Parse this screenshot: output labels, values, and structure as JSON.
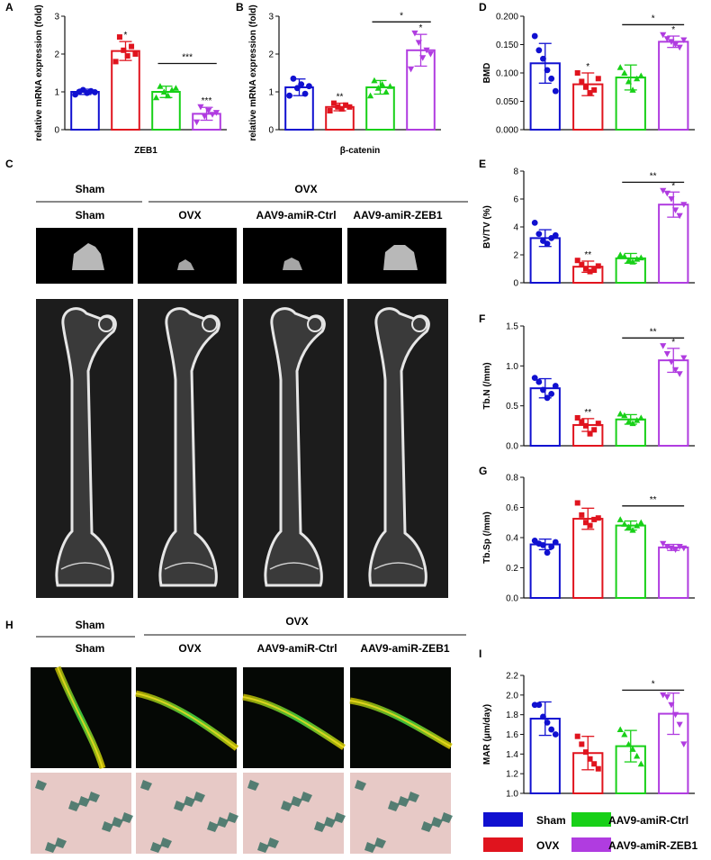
{
  "panels": {
    "A": "A",
    "B": "B",
    "C": "C",
    "D": "D",
    "E": "E",
    "F": "F",
    "G": "G",
    "H": "H",
    "I": "I"
  },
  "groups": [
    "Sham",
    "OVX",
    "AAV9-amiR-Ctrl",
    "AAV9-amiR-ZEB1"
  ],
  "colors": {
    "Sham": "#1010d0",
    "OVX": "#e0141e",
    "AAV9-amiR-Ctrl": "#18d018",
    "AAV9-amiR-ZEB1": "#b03ce0"
  },
  "section_c": {
    "sham_header": "Sham",
    "ovx_header": "OVX",
    "cols": [
      "Sham",
      "OVX",
      "AAV9-amiR-Ctrl",
      "AAV9-amiR-ZEB1"
    ]
  },
  "section_h": {
    "sham_header": "Sham",
    "ovx_header": "OVX",
    "cols": [
      "Sham",
      "OVX",
      "AAV9-amiR-Ctrl",
      "AAV9-amiR-ZEB1"
    ]
  },
  "legend": [
    "Sham",
    "OVX",
    "AAV9-amiR-Ctrl",
    "AAV9-amiR-ZEB1"
  ],
  "chart_data": [
    {
      "id": "A",
      "type": "bar",
      "categories": [
        "Sham",
        "OVX",
        "AAV9-amiR-Ctrl",
        "AAV9-amiR-ZEB1"
      ],
      "values": [
        1.0,
        2.08,
        1.0,
        0.42
      ],
      "errors": [
        0.07,
        0.25,
        0.15,
        0.17
      ],
      "points": [
        [
          0.93,
          1.0,
          1.05,
          0.97,
          1.02,
          0.99
        ],
        [
          1.8,
          2.45,
          2.1,
          1.95,
          2.2,
          2.0
        ],
        [
          0.85,
          1.15,
          1.0,
          0.9,
          1.05,
          1.1
        ],
        [
          0.2,
          0.6,
          0.35,
          0.5,
          0.4,
          0.45
        ]
      ],
      "stars": [
        "",
        "*",
        "",
        "***"
      ],
      "brackets": [
        {
          "from": 2,
          "to": 3,
          "label": "***"
        }
      ],
      "ylabel": "relative mRNA expression (fold)",
      "xlabel": "ZEB1",
      "ylim": [
        0,
        3
      ],
      "yticks": [
        "0",
        "1",
        "2",
        "3"
      ]
    },
    {
      "id": "B",
      "type": "bar",
      "categories": [
        "Sham",
        "OVX",
        "AAV9-amiR-Ctrl",
        "AAV9-amiR-ZEB1"
      ],
      "values": [
        1.12,
        0.6,
        1.12,
        2.1
      ],
      "errors": [
        0.22,
        0.1,
        0.18,
        0.42
      ],
      "points": [
        [
          0.9,
          1.35,
          1.1,
          1.2,
          0.95,
          1.15
        ],
        [
          0.5,
          0.7,
          0.6,
          0.55,
          0.65,
          0.6
        ],
        [
          0.9,
          1.3,
          1.1,
          1.2,
          1.0,
          1.15
        ],
        [
          1.6,
          2.55,
          2.3,
          1.9,
          2.1,
          2.0
        ]
      ],
      "stars": [
        "",
        "**",
        "",
        "*"
      ],
      "brackets": [
        {
          "from": 2,
          "to": 3,
          "label": "*"
        }
      ],
      "ylabel": "relative mRNA expression (fold)",
      "xlabel": "β-catenin",
      "ylim": [
        0,
        3
      ],
      "yticks": [
        "0",
        "1",
        "2",
        "3"
      ]
    },
    {
      "id": "D",
      "type": "bar",
      "categories": [
        "Sham",
        "OVX",
        "AAV9-amiR-Ctrl",
        "AAV9-amiR-ZEB1"
      ],
      "values": [
        0.117,
        0.08,
        0.092,
        0.155
      ],
      "errors": [
        0.035,
        0.02,
        0.022,
        0.01
      ],
      "points": [
        [
          0.165,
          0.14,
          0.125,
          0.105,
          0.09,
          0.068
        ],
        [
          0.1,
          0.085,
          0.075,
          0.065,
          0.07,
          0.09
        ],
        [
          0.11,
          0.1,
          0.085,
          0.07,
          0.09,
          0.095
        ],
        [
          0.167,
          0.16,
          0.155,
          0.15,
          0.145,
          0.158
        ]
      ],
      "stars": [
        "",
        "*",
        "",
        "*"
      ],
      "brackets": [
        {
          "from": 2,
          "to": 3,
          "label": "*"
        }
      ],
      "ylabel": "BMD",
      "xlabel": "",
      "ylim": [
        0,
        0.2
      ],
      "yticks": [
        "0.000",
        "0.050",
        "0.100",
        "0.150",
        "0.200"
      ]
    },
    {
      "id": "E",
      "type": "bar",
      "categories": [
        "Sham",
        "OVX",
        "AAV9-amiR-Ctrl",
        "AAV9-amiR-ZEB1"
      ],
      "values": [
        3.2,
        1.15,
        1.75,
        5.6
      ],
      "errors": [
        0.6,
        0.4,
        0.35,
        0.9
      ],
      "points": [
        [
          4.3,
          3.5,
          3.0,
          2.8,
          3.2,
          3.4
        ],
        [
          1.6,
          1.3,
          1.0,
          0.8,
          0.9,
          1.2
        ],
        [
          2.0,
          1.9,
          1.6,
          1.5,
          1.7,
          1.8
        ],
        [
          6.6,
          6.4,
          6.0,
          5.2,
          4.8,
          5.6
        ]
      ],
      "stars": [
        "",
        "**",
        "",
        "*"
      ],
      "brackets": [
        {
          "from": 2,
          "to": 3,
          "label": "**"
        }
      ],
      "ylabel": "BV/TV (%)",
      "xlabel": "",
      "ylim": [
        0,
        8
      ],
      "yticks": [
        "0",
        "2",
        "4",
        "6",
        "8"
      ]
    },
    {
      "id": "F",
      "type": "bar",
      "categories": [
        "Sham",
        "OVX",
        "AAV9-amiR-Ctrl",
        "AAV9-amiR-ZEB1"
      ],
      "values": [
        0.72,
        0.26,
        0.33,
        1.07
      ],
      "errors": [
        0.12,
        0.08,
        0.06,
        0.15
      ],
      "points": [
        [
          0.85,
          0.8,
          0.7,
          0.6,
          0.65,
          0.75
        ],
        [
          0.35,
          0.3,
          0.25,
          0.15,
          0.2,
          0.28
        ],
        [
          0.4,
          0.38,
          0.3,
          0.28,
          0.32,
          0.35
        ],
        [
          1.25,
          1.15,
          1.05,
          0.95,
          0.9,
          1.1
        ]
      ],
      "stars": [
        "",
        "**",
        "",
        "*"
      ],
      "brackets": [
        {
          "from": 2,
          "to": 3,
          "label": "**"
        }
      ],
      "ylabel": "Tb.N (/mm)",
      "xlabel": "",
      "ylim": [
        0,
        1.5
      ],
      "yticks": [
        "0.0",
        "0.5",
        "1.0",
        "1.5"
      ]
    },
    {
      "id": "G",
      "type": "bar",
      "categories": [
        "Sham",
        "OVX",
        "AAV9-amiR-Ctrl",
        "AAV9-amiR-ZEB1"
      ],
      "values": [
        0.355,
        0.525,
        0.48,
        0.335
      ],
      "errors": [
        0.035,
        0.07,
        0.03,
        0.02
      ],
      "points": [
        [
          0.38,
          0.36,
          0.35,
          0.3,
          0.34,
          0.37
        ],
        [
          0.63,
          0.55,
          0.5,
          0.48,
          0.52,
          0.53
        ],
        [
          0.52,
          0.49,
          0.47,
          0.45,
          0.48,
          0.5
        ],
        [
          0.36,
          0.34,
          0.33,
          0.32,
          0.34,
          0.33
        ]
      ],
      "stars": [
        "",
        "",
        "",
        ""
      ],
      "brackets": [
        {
          "from": 2,
          "to": 3,
          "label": "**"
        }
      ],
      "ylabel": "Tb.Sp (/mm)",
      "xlabel": "",
      "ylim": [
        0,
        0.8
      ],
      "yticks": [
        "0.0",
        "0.2",
        "0.4",
        "0.6",
        "0.8"
      ]
    },
    {
      "id": "I",
      "type": "bar",
      "categories": [
        "Sham",
        "OVX",
        "AAV9-amiR-Ctrl",
        "AAV9-amiR-ZEB1"
      ],
      "values": [
        1.76,
        1.41,
        1.48,
        1.81
      ],
      "errors": [
        0.17,
        0.17,
        0.16,
        0.21
      ],
      "points": [
        [
          1.9,
          1.9,
          1.78,
          1.72,
          1.65,
          1.6
        ],
        [
          1.58,
          1.5,
          1.42,
          1.35,
          1.3,
          1.25
        ],
        [
          1.65,
          1.6,
          1.5,
          1.45,
          1.38,
          1.3
        ],
        [
          2.0,
          1.98,
          1.9,
          1.8,
          1.7,
          1.5
        ]
      ],
      "stars": [
        "",
        "",
        "",
        ""
      ],
      "brackets": [
        {
          "from": 2,
          "to": 3,
          "label": "*"
        }
      ],
      "ylabel": "MAR (μm/day)",
      "xlabel": "",
      "ylim": [
        1.0,
        2.2
      ],
      "yticks": [
        "1.0",
        "1.2",
        "1.4",
        "1.6",
        "1.8",
        "2.0",
        "2.2"
      ]
    }
  ]
}
